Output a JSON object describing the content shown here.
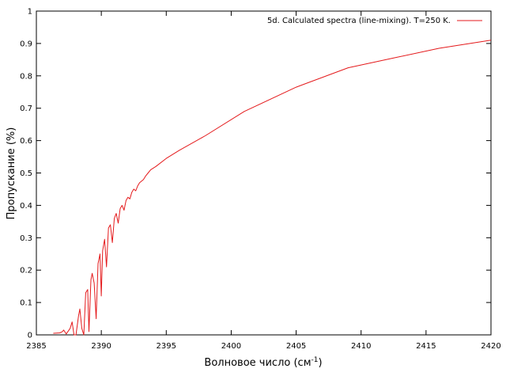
{
  "chart_data": {
    "type": "line",
    "title": "",
    "xlabel_main": "Волновое число (см",
    "xlabel_sup": "-1",
    "xlabel_close": ")",
    "ylabel": "Пропускание (%)",
    "xlim": [
      2385,
      2420
    ],
    "ylim": [
      0,
      1
    ],
    "x_ticks": [
      "2385",
      "2390",
      "2395",
      "2400",
      "2405",
      "2410",
      "2415",
      "2420"
    ],
    "y_ticks": [
      "0",
      "0.1",
      "0.2",
      "0.3",
      "0.4",
      "0.5",
      "0.6",
      "0.7",
      "0.8",
      "0.9",
      "1"
    ],
    "grid": false,
    "legend_position": "top-right",
    "colors": {
      "series": "#e41a1c",
      "axes": "#000000"
    },
    "series": [
      {
        "name": "5d. Calculated spectra (line-mixing). T=250 K.",
        "x": [
          2386.3,
          2386.8,
          2387.0,
          2387.1,
          2387.3,
          2387.6,
          2387.75,
          2387.9,
          2388.05,
          2388.25,
          2388.35,
          2388.5,
          2388.65,
          2388.8,
          2388.95,
          2389.05,
          2389.2,
          2389.3,
          2389.45,
          2389.6,
          2389.75,
          2389.9,
          2390.0,
          2390.1,
          2390.25,
          2390.4,
          2390.55,
          2390.7,
          2390.85,
          2391.0,
          2391.15,
          2391.3,
          2391.45,
          2391.6,
          2391.75,
          2391.9,
          2392.05,
          2392.2,
          2392.35,
          2392.5,
          2392.65,
          2392.8,
          2392.95,
          2393.1,
          2393.25,
          2393.4,
          2393.6,
          2393.8,
          2394.2,
          2395.0,
          2396.0,
          2398.0,
          2401.0,
          2405.0,
          2409.0,
          2412.5,
          2416.0,
          2420.0
        ],
        "y": [
          0.005,
          0.006,
          0.01,
          0.015,
          0.003,
          0.02,
          0.04,
          0.0,
          0.0,
          0.06,
          0.08,
          0.02,
          0.0,
          0.13,
          0.14,
          0.01,
          0.17,
          0.19,
          0.16,
          0.05,
          0.22,
          0.25,
          0.12,
          0.26,
          0.295,
          0.21,
          0.33,
          0.34,
          0.285,
          0.36,
          0.375,
          0.345,
          0.39,
          0.4,
          0.385,
          0.415,
          0.425,
          0.42,
          0.44,
          0.45,
          0.445,
          0.46,
          0.47,
          0.475,
          0.48,
          0.49,
          0.5,
          0.51,
          0.52,
          0.545,
          0.57,
          0.615,
          0.69,
          0.765,
          0.825,
          0.855,
          0.885,
          0.91
        ]
      }
    ]
  }
}
